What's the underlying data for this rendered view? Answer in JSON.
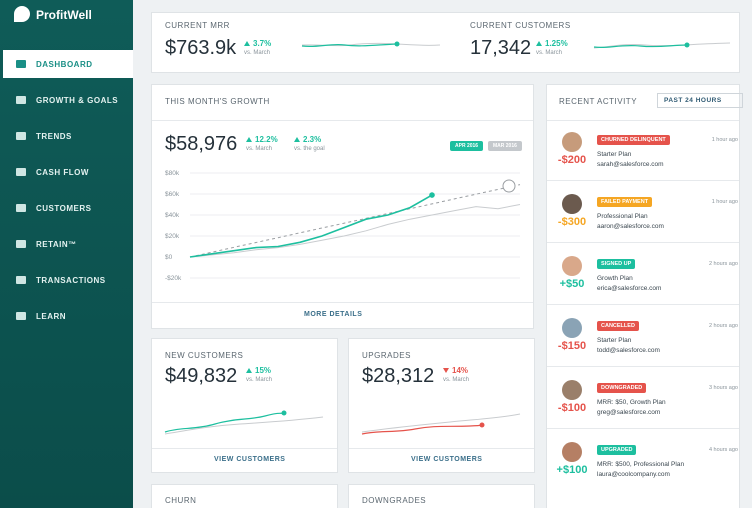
{
  "sidebar": {
    "brand": "ProfitWell",
    "nav": [
      "DASHBOARD",
      "GROWTH & GOALS",
      "TRENDS",
      "CASH FLOW",
      "CUSTOMERS",
      "RETAIN™",
      "TRANSACTIONS",
      "LEARN"
    ]
  },
  "summary": {
    "mrr": {
      "label": "CURRENT MRR",
      "value": "$763.9k",
      "change": "3.7%",
      "compare": "vs. March"
    },
    "customers": {
      "label": "CURRENT CUSTOMERS",
      "value": "17,342",
      "change": "1.25%",
      "compare": "vs. March"
    }
  },
  "growth": {
    "title": "THIS MONTH'S GROWTH",
    "value": "$58,976",
    "changes": [
      {
        "value": "12.2%",
        "compare": "vs. March"
      },
      {
        "value": "2.3%",
        "compare": "vs. the goal"
      }
    ],
    "tags": [
      "APR 2016",
      "MAR 2016"
    ],
    "link": "MORE DETAILS",
    "chart_data": {
      "type": "line",
      "ylim": [
        -20000,
        80000
      ],
      "yticks": [
        {
          "value": 80000,
          "label": "$80k"
        },
        {
          "value": 60000,
          "label": "$60k"
        },
        {
          "value": 40000,
          "label": "$40k"
        },
        {
          "value": 20000,
          "label": "$20k"
        },
        {
          "value": 0,
          "label": "$0"
        },
        {
          "value": -20000,
          "label": "-$20k"
        }
      ],
      "grid": true,
      "series": [
        {
          "color": "#c9cccf",
          "values": [
            0,
            2000,
            4000,
            7000,
            9000,
            12000,
            16000,
            20000,
            25000,
            31000,
            36000,
            40000,
            44000,
            48000,
            46000,
            50000
          ]
        },
        {
          "color": "#9a9ea2",
          "dashed": true,
          "values": [
            0,
            4600,
            9200,
            13800,
            18400,
            23000,
            27600,
            32200,
            36800,
            41400,
            46000,
            50600,
            55200,
            59800,
            64400,
            69000
          ]
        },
        {
          "color": "#1dbf9f",
          "values": [
            0,
            3000,
            6000,
            9000,
            10000,
            14000,
            20000,
            28000,
            36000,
            40000,
            47000,
            58976
          ]
        }
      ]
    }
  },
  "new_customers": {
    "title": "NEW CUSTOMERS",
    "value": "$49,832",
    "change": "15%",
    "compare": "vs. March",
    "link": "VIEW CUSTOMERS"
  },
  "upgrades": {
    "title": "UPGRADES",
    "value": "$28,312",
    "change": "14%",
    "compare": "vs. March",
    "link": "VIEW CUSTOMERS"
  },
  "activity": {
    "title": "RECENT ACTIVITY",
    "filter": "PAST 24 HOURS",
    "items": [
      {
        "amount": "-$200",
        "badge": "CHURNED DELINQUENT",
        "color": "#e5534b",
        "plan": "Starter Plan",
        "email": "sarah@salesforce.com",
        "time": "1 hour ago"
      },
      {
        "amount": "-$300",
        "badge": "FAILED PAYMENT",
        "color": "#f5a623",
        "plan": "Professional Plan",
        "email": "aaron@salesforce.com",
        "time": "1 hour ago"
      },
      {
        "amount": "+$50",
        "badge": "SIGNED UP",
        "color": "#1dbf9f",
        "plan": "Growth Plan",
        "email": "erica@salesforce.com",
        "time": "2 hours ago"
      },
      {
        "amount": "-$150",
        "badge": "CANCELLED",
        "color": "#e5534b",
        "plan": "Starter Plan",
        "email": "todd@salesforce.com",
        "time": "2 hours ago"
      },
      {
        "amount": "-$100",
        "badge": "DOWNGRADED",
        "color": "#e5534b",
        "plan": "MRR: $50, Growth Plan",
        "email": "greg@salesforce.com",
        "time": "3 hours ago"
      },
      {
        "amount": "+$100",
        "badge": "UPGRADED",
        "color": "#1dbf9f",
        "plan": "MRR: $500, Professional Plan",
        "email": "laura@coolcompany.com",
        "time": "4 hours ago"
      }
    ]
  },
  "churn": {
    "title": "CHURN"
  },
  "downgrades": {
    "title": "DOWNGRADES"
  }
}
